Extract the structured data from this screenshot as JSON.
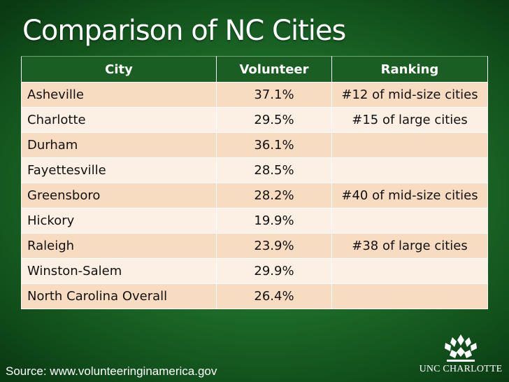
{
  "title": "Comparison of NC Cities",
  "table": {
    "headers": {
      "city": "City",
      "volunteer": "Volunteer",
      "ranking": "Ranking"
    },
    "rows": [
      {
        "city": "Asheville",
        "volunteer": "37.1%",
        "ranking": "#12 of mid-size cities"
      },
      {
        "city": "Charlotte",
        "volunteer": "29.5%",
        "ranking": "#15 of large cities"
      },
      {
        "city": "Durham",
        "volunteer": "36.1%",
        "ranking": ""
      },
      {
        "city": "Fayettesville",
        "volunteer": "28.5%",
        "ranking": ""
      },
      {
        "city": "Greensboro",
        "volunteer": "28.2%",
        "ranking": "#40 of mid-size cities"
      },
      {
        "city": "Hickory",
        "volunteer": "19.9%",
        "ranking": ""
      },
      {
        "city": "Raleigh",
        "volunteer": "23.9%",
        "ranking": "#38 of large cities"
      },
      {
        "city": "Winston-Salem",
        "volunteer": "29.9%",
        "ranking": ""
      },
      {
        "city": "North Carolina Overall",
        "volunteer": "26.4%",
        "ranking": ""
      }
    ]
  },
  "source": "Source: www.volunteeringinamerica.gov",
  "logo": {
    "text": "UNC CHARLOTTE",
    "icon": "unc-charlotte-crown-icon"
  },
  "colors": {
    "header_bg": "#1b5e24",
    "row_odd": "#f8dcc1",
    "row_even": "#fcefe4",
    "background": "#1e6e2a"
  }
}
